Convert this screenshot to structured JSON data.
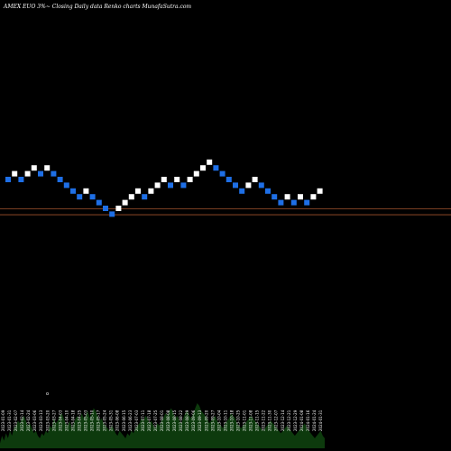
{
  "header": {
    "title": "AMEX  EUO 3%~  Closing Daily data  Renko  charts MunafaSutra.com"
  },
  "colors": {
    "background": "#000000",
    "up_brick": "#ffffff",
    "down_brick": "#1e6fe6",
    "reference_line": "#a0522d",
    "volume_fill": "#0d3a0d"
  },
  "chart_data": {
    "type": "renko",
    "title": "AMEX  EUO 3%~  Closing Daily data  Renko  charts MunafaSutra.com",
    "brick_size": "3%",
    "bricks": [
      {
        "dir": "down",
        "level": 5
      },
      {
        "dir": "up",
        "level": 6
      },
      {
        "dir": "down",
        "level": 5
      },
      {
        "dir": "up",
        "level": 6
      },
      {
        "dir": "up",
        "level": 7
      },
      {
        "dir": "down",
        "level": 6
      },
      {
        "dir": "up",
        "level": 7
      },
      {
        "dir": "down",
        "level": 6
      },
      {
        "dir": "down",
        "level": 5
      },
      {
        "dir": "down",
        "level": 4
      },
      {
        "dir": "down",
        "level": 3
      },
      {
        "dir": "down",
        "level": 2
      },
      {
        "dir": "up",
        "level": 3
      },
      {
        "dir": "down",
        "level": 2
      },
      {
        "dir": "down",
        "level": 1
      },
      {
        "dir": "down",
        "level": 0
      },
      {
        "dir": "down",
        "level": -1
      },
      {
        "dir": "up",
        "level": 0
      },
      {
        "dir": "up",
        "level": 1
      },
      {
        "dir": "up",
        "level": 2
      },
      {
        "dir": "up",
        "level": 3
      },
      {
        "dir": "down",
        "level": 2
      },
      {
        "dir": "up",
        "level": 3
      },
      {
        "dir": "up",
        "level": 4
      },
      {
        "dir": "up",
        "level": 5
      },
      {
        "dir": "down",
        "level": 4
      },
      {
        "dir": "up",
        "level": 5
      },
      {
        "dir": "down",
        "level": 4
      },
      {
        "dir": "up",
        "level": 5
      },
      {
        "dir": "up",
        "level": 6
      },
      {
        "dir": "up",
        "level": 7
      },
      {
        "dir": "up",
        "level": 8
      },
      {
        "dir": "down",
        "level": 7
      },
      {
        "dir": "down",
        "level": 6
      },
      {
        "dir": "down",
        "level": 5
      },
      {
        "dir": "down",
        "level": 4
      },
      {
        "dir": "down",
        "level": 3
      },
      {
        "dir": "up",
        "level": 4
      },
      {
        "dir": "up",
        "level": 5
      },
      {
        "dir": "down",
        "level": 4
      },
      {
        "dir": "down",
        "level": 3
      },
      {
        "dir": "down",
        "level": 2
      },
      {
        "dir": "down",
        "level": 1
      },
      {
        "dir": "up",
        "level": 2
      },
      {
        "dir": "down",
        "level": 1
      },
      {
        "dir": "up",
        "level": 2
      },
      {
        "dir": "down",
        "level": 1
      },
      {
        "dir": "up",
        "level": 2
      },
      {
        "dir": "up",
        "level": 3
      }
    ],
    "reference_lines": [
      -0.1,
      -1.1
    ],
    "volume": [
      2,
      5,
      3,
      6,
      4,
      7,
      5,
      8,
      9,
      11,
      10,
      12,
      13,
      11,
      9,
      10,
      8,
      6,
      7,
      5,
      4,
      6,
      5,
      7,
      6,
      9,
      8,
      12,
      10,
      11,
      13,
      14,
      12,
      10,
      9,
      11,
      8,
      10,
      12,
      13,
      11,
      14,
      12,
      13,
      15,
      12,
      14,
      16,
      15,
      13,
      11,
      12,
      10,
      9,
      8,
      7,
      9,
      8,
      6,
      5,
      7,
      6,
      5,
      4,
      6,
      5,
      7,
      6,
      8,
      9,
      10,
      12,
      11,
      13,
      12,
      10,
      11,
      9,
      8,
      10,
      9,
      11,
      12,
      14,
      13,
      15,
      16,
      14,
      12,
      13,
      11,
      10,
      12,
      14,
      15,
      13,
      12,
      14,
      16,
      18,
      17,
      15,
      14,
      13,
      12,
      10,
      11,
      12,
      13,
      11,
      10,
      9,
      8,
      10,
      11,
      12,
      14,
      13,
      12,
      10,
      9,
      8,
      9,
      10,
      11,
      12,
      13,
      12,
      11,
      10,
      9,
      8,
      7,
      8,
      9,
      10,
      11,
      10,
      9,
      8,
      7,
      6,
      7,
      8,
      9,
      8,
      7,
      6,
      5,
      6,
      7,
      8,
      9,
      10,
      8,
      7,
      6,
      5,
      4,
      5,
      6,
      7,
      5,
      4
    ],
    "volume_marker": "o",
    "date_labels": [
      "2023-01-09",
      "2023-01-31",
      "2023-02-07",
      "2023-02-14",
      "2023-02-24",
      "2023-03-06",
      "2023-03-13",
      "2023-03-20",
      "2023-03-27",
      "2023-04-03",
      "2023-04-10",
      "2023-04-18",
      "2023-04-25",
      "2023-05-03",
      "2023-05-10",
      "2023-05-17",
      "2023-05-24",
      "2023-05-31",
      "2023-06-08",
      "2023-06-15",
      "2023-06-23",
      "2023-07-03",
      "2023-07-11",
      "2023-07-18",
      "2023-07-25",
      "2023-08-01",
      "2023-08-08",
      "2023-08-15",
      "2023-08-22",
      "2023-08-29",
      "2023-09-06",
      "2023-09-13",
      "2023-09-20",
      "2023-09-27",
      "2023-10-04",
      "2023-10-11",
      "2023-10-18",
      "2023-10-25",
      "2023-11-01",
      "2023-11-08",
      "2023-11-15",
      "2023-11-22",
      "2023-11-30",
      "2023-12-07",
      "2023-12-14",
      "2023-12-21",
      "2023-12-29",
      "2024-01-08",
      "2024-01-16",
      "2024-01-24",
      "2024-01-31"
    ]
  }
}
